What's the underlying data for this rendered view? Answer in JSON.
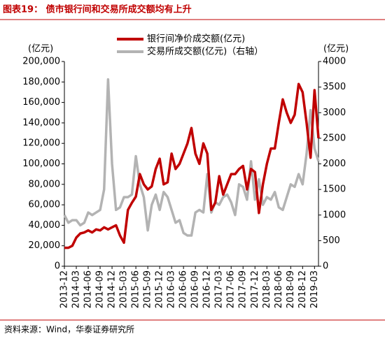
{
  "chart_data": {
    "type": "line",
    "title": "图表19： 债市银行间和交易所成交额均有上升",
    "y_label": "(亿元)",
    "y2_label": "(亿元)",
    "source": "资料来源：Wind，华泰证券研究所",
    "categories": [
      "2013-12",
      null,
      null,
      "2014-03",
      null,
      null,
      "2014-06",
      null,
      null,
      "2014-09",
      null,
      null,
      "2014-12",
      null,
      null,
      "2015-03",
      null,
      null,
      "2015-06",
      null,
      null,
      "2015-09",
      null,
      null,
      "2015-12",
      null,
      null,
      "2016-03",
      null,
      null,
      "2016-06",
      null,
      null,
      "2016-09",
      null,
      null,
      "2016-12",
      null,
      null,
      "2017-03",
      null,
      null,
      "2017-06",
      null,
      null,
      "2017-09",
      null,
      null,
      "2017-12",
      null,
      null,
      "2018-03",
      null,
      null,
      "2018-06",
      null,
      null,
      "2018-09",
      null,
      null,
      "2018-12",
      null,
      null,
      "2019-03",
      null
    ],
    "series": [
      {
        "name": "银行间净价成交额(亿元)",
        "color": "#c00000",
        "axis": "y",
        "values": [
          18000,
          18000,
          20000,
          28000,
          32000,
          33000,
          35000,
          33000,
          36000,
          35000,
          38000,
          36000,
          38000,
          40000,
          30000,
          23000,
          55000,
          62000,
          68000,
          90000,
          80000,
          75000,
          78000,
          95000,
          105000,
          80000,
          82000,
          110000,
          95000,
          100000,
          110000,
          120000,
          135000,
          110000,
          100000,
          120000,
          110000,
          55000,
          62000,
          88000,
          70000,
          80000,
          90000,
          90000,
          95000,
          98000,
          75000,
          95000,
          92000,
          52000,
          80000,
          100000,
          115000,
          115000,
          140000,
          163000,
          150000,
          140000,
          148000,
          178000,
          170000,
          140000,
          106000,
          172000,
          125000
        ]
      },
      {
        "name": "交易所成交额(亿元)（右轴）",
        "color": "#b3b3b3",
        "axis": "y2",
        "values": [
          1000,
          850,
          900,
          900,
          800,
          850,
          1050,
          1000,
          1050,
          1100,
          1500,
          3650,
          2000,
          1100,
          1150,
          1350,
          1350,
          1400,
          2150,
          1600,
          1350,
          700,
          1200,
          1400,
          1100,
          1450,
          1350,
          1100,
          850,
          900,
          650,
          600,
          600,
          1050,
          1100,
          1050,
          1800,
          1050,
          1250,
          1200,
          1350,
          1400,
          1250,
          1000,
          1600,
          1550,
          1300,
          2050,
          1300,
          1700,
          1200,
          1350,
          1300,
          1450,
          1150,
          1100,
          1350,
          1600,
          1550,
          1800,
          1600,
          2200,
          3050,
          2300,
          2050
        ]
      }
    ],
    "ylim": [
      0,
      200000
    ],
    "yticks": [
      0,
      {
        "value": 20000,
        "label": "20,000"
      },
      {
        "value": 40000,
        "label": "40,000"
      },
      {
        "value": 60000,
        "label": "60,000"
      },
      {
        "value": 80000,
        "label": "80,000"
      },
      {
        "value": 100000,
        "label": "100,000"
      },
      {
        "value": 120000,
        "label": "120,000"
      },
      {
        "value": 140000,
        "label": "140,000"
      },
      {
        "value": 160000,
        "label": "160,000"
      },
      {
        "value": 180000,
        "label": "180,000"
      },
      {
        "value": 200000,
        "label": "200,000"
      }
    ],
    "y2lim": [
      0,
      4000
    ],
    "y2ticks": [
      0,
      500,
      1000,
      1500,
      2000,
      2500,
      3000,
      3500,
      4000
    ]
  }
}
